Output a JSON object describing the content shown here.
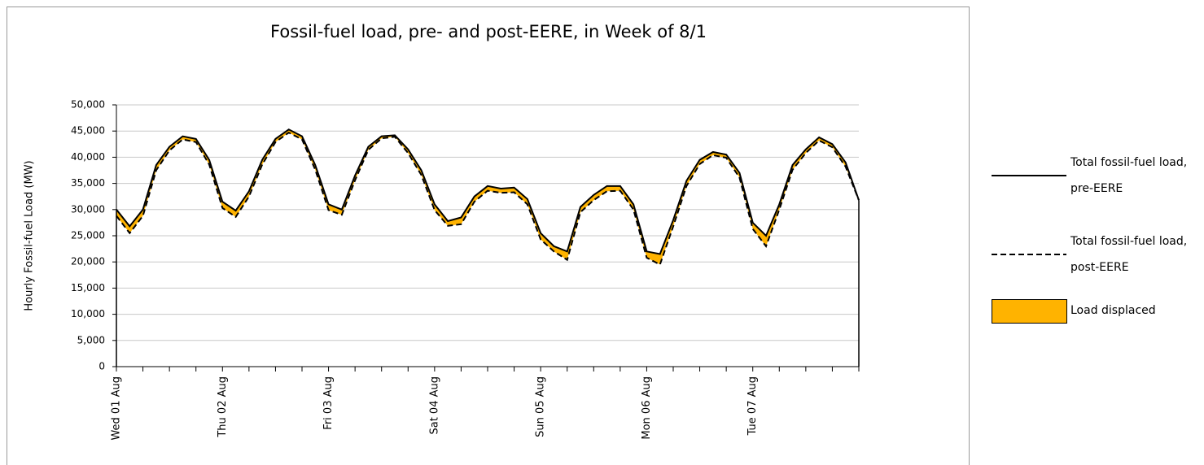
{
  "chart_data": {
    "type": "area-between-lines",
    "title": "Fossil-fuel load, pre- and post-EERE, in Week of 8/1",
    "y_label": "Hourly Fossil-fuel Load (MW)",
    "categories": [
      "Wed 01 Aug",
      null,
      null,
      null,
      null,
      null,
      null,
      null,
      "Thu 02 Aug",
      null,
      null,
      null,
      null,
      null,
      null,
      null,
      "Fri 03 Aug",
      null,
      null,
      null,
      null,
      null,
      null,
      null,
      "Sat 04 Aug",
      null,
      null,
      null,
      null,
      null,
      null,
      null,
      "Sun 05 Aug",
      null,
      null,
      null,
      null,
      null,
      null,
      null,
      "Mon 06 Aug",
      null,
      null,
      null,
      null,
      null,
      null,
      null,
      "Tue 07 Aug",
      null,
      null,
      null,
      null,
      null,
      null,
      null,
      null
    ],
    "series": [
      {
        "name": "Total fossil-fuel load, pre-EERE",
        "color": "#000000",
        "dashed": false,
        "values": [
          30000,
          26800,
          30000,
          38500,
          42000,
          44000,
          43500,
          39500,
          31500,
          29800,
          33500,
          39500,
          43500,
          45300,
          44000,
          38500,
          31000,
          30000,
          36500,
          42000,
          44000,
          44200,
          41500,
          37500,
          31000,
          27800,
          28500,
          32500,
          34500,
          34000,
          34200,
          32000,
          25500,
          23000,
          22000,
          30500,
          32800,
          34500,
          34500,
          31000,
          22000,
          21500,
          28000,
          35500,
          39500,
          41000,
          40500,
          37000,
          27500,
          25000,
          31000,
          38500,
          41500,
          43800,
          42500,
          39000,
          31800
        ]
      },
      {
        "name": "Total fossil-fuel load, post-EERE",
        "color": "#000000",
        "dashed": true,
        "values": [
          28800,
          25500,
          28800,
          37500,
          41300,
          43400,
          42900,
          38600,
          30300,
          28600,
          32500,
          38600,
          42900,
          44700,
          43400,
          37600,
          29900,
          29000,
          35600,
          41400,
          43600,
          43900,
          40800,
          36600,
          29900,
          26900,
          27200,
          31500,
          33600,
          33200,
          33300,
          31000,
          24300,
          22000,
          20400,
          29500,
          31800,
          33500,
          33600,
          30000,
          20800,
          19500,
          26800,
          34500,
          38700,
          40400,
          39900,
          36100,
          26300,
          23000,
          30000,
          37600,
          40800,
          43200,
          41900,
          38200,
          31800
        ]
      }
    ],
    "area": {
      "name": "Load displaced",
      "color": "#ffb300"
    },
    "ylim": [
      0,
      50000
    ],
    "yticks": [
      {
        "value": 0,
        "label": "0"
      },
      {
        "value": 5000,
        "label": "5,000"
      },
      {
        "value": 10000,
        "label": "10,000"
      },
      {
        "value": 15000,
        "label": "15,000"
      },
      {
        "value": 20000,
        "label": "20,000"
      },
      {
        "value": 25000,
        "label": "25,000"
      },
      {
        "value": 30000,
        "label": "30,000"
      },
      {
        "value": 35000,
        "label": "35,000"
      },
      {
        "value": 40000,
        "label": "40,000"
      },
      {
        "value": 45000,
        "label": "45,000"
      },
      {
        "value": 50000,
        "label": "50,000"
      }
    ],
    "grid": true,
    "legend": "right"
  }
}
